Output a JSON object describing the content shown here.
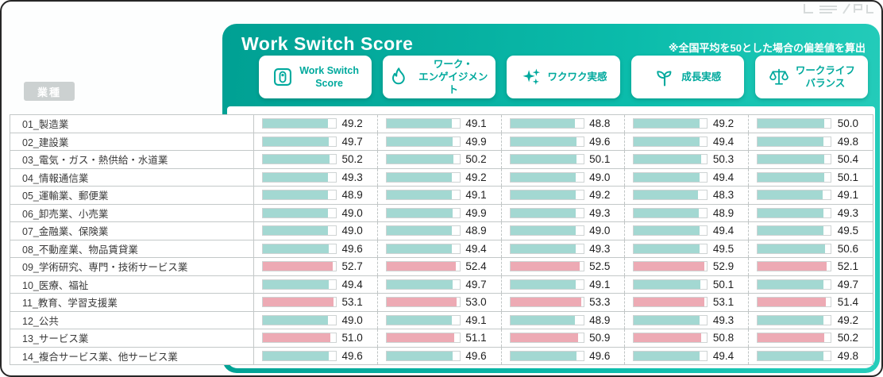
{
  "header": {
    "title": "Work Switch Score",
    "note": "※全国平均を50とした場合の偏差値を算出"
  },
  "columns": [
    {
      "icon": "switch-icon",
      "lines": [
        "Work Switch",
        "Score"
      ]
    },
    {
      "icon": "flame-icon",
      "lines": [
        "ワーク・",
        "エンゲイジメント"
      ]
    },
    {
      "icon": "sparkles-icon",
      "lines": [
        "ワクワク実感"
      ]
    },
    {
      "icon": "sprout-icon",
      "lines": [
        "成長実感"
      ]
    },
    {
      "icon": "balance-icon",
      "lines": [
        "ワークライフ",
        "バランス"
      ]
    }
  ],
  "table": {
    "industry_header": "業種"
  },
  "colors": {
    "accent": "#00a99d",
    "teal_bar": "#a3d8d2",
    "pink_bar": "#edaab4",
    "panel_gradient_start": "#00a093",
    "panel_gradient_end": "#26cdbb"
  },
  "chart_data": {
    "type": "bar",
    "title": "Work Switch Score",
    "subtitle": "※全国平均を50とした場合の偏差値を算出",
    "baseline": 50,
    "value_display_scale": [
      0,
      55
    ],
    "legend_position": "top",
    "categories": [
      "01_製造業",
      "02_建設業",
      "03_電気・ガス・熱供給・水道業",
      "04_情報通信業",
      "05_運輸業、郵便業",
      "06_卸売業、小売業",
      "07_金融業、保険業",
      "08_不動産業、物品賃貸業",
      "09_学術研究、専門・技術サービス業",
      "10_医療、福祉",
      "11_教育、学習支援業",
      "12_公共",
      "13_サービス業",
      "14_複合サービス業、他サービス業"
    ],
    "series": [
      {
        "name": "Work Switch Score",
        "values": [
          49.2,
          49.7,
          50.2,
          49.3,
          48.9,
          49.0,
          49.0,
          49.6,
          52.7,
          49.4,
          53.1,
          49.0,
          51.0,
          49.6
        ]
      },
      {
        "name": "ワーク・エンゲイジメント",
        "values": [
          49.1,
          49.9,
          50.2,
          49.2,
          49.1,
          49.9,
          48.9,
          49.4,
          52.4,
          49.7,
          53.0,
          49.1,
          51.1,
          49.6
        ]
      },
      {
        "name": "ワクワク実感",
        "values": [
          48.8,
          49.6,
          50.1,
          49.0,
          49.2,
          49.3,
          49.0,
          49.3,
          52.5,
          49.1,
          53.3,
          48.9,
          50.9,
          49.6
        ]
      },
      {
        "name": "成長実感",
        "values": [
          49.2,
          49.4,
          50.3,
          49.4,
          48.3,
          48.9,
          49.4,
          49.5,
          52.9,
          50.1,
          53.1,
          49.3,
          50.8,
          49.4
        ]
      },
      {
        "name": "ワークライフバランス",
        "values": [
          50.0,
          49.8,
          50.4,
          50.1,
          49.1,
          49.3,
          49.5,
          50.6,
          52.1,
          49.7,
          51.4,
          49.2,
          50.2,
          49.8
        ]
      }
    ],
    "highlighted_categories": [
      "09_学術研究、専門・技術サービス業",
      "11_教育、学習支援業",
      "13_サービス業"
    ]
  }
}
